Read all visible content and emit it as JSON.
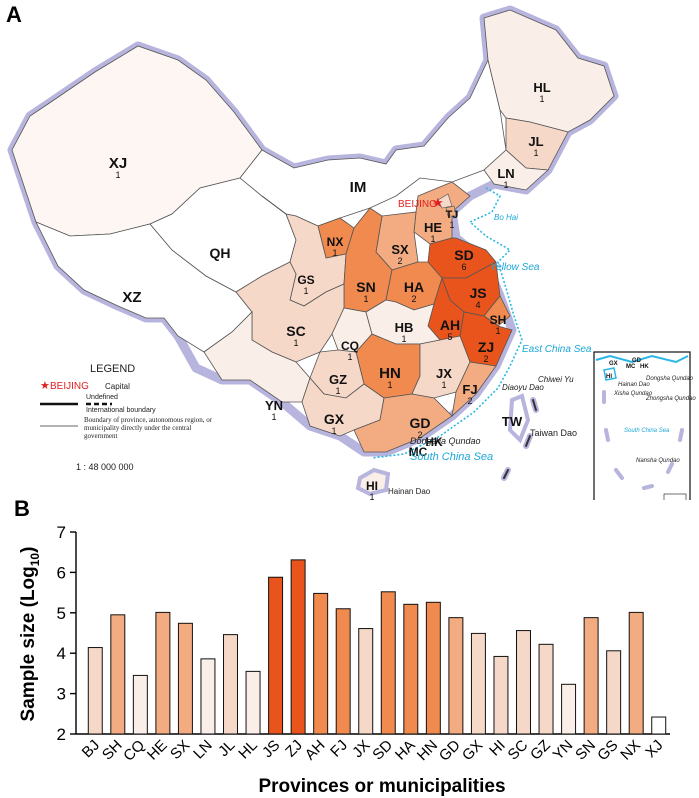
{
  "panel_a": {
    "label": "A",
    "capital_label": "BEIJING",
    "regions": [
      {
        "code": "XJ",
        "sup": "1"
      },
      {
        "code": "XZ",
        "sup": ""
      },
      {
        "code": "QH",
        "sup": ""
      },
      {
        "code": "IM",
        "sup": ""
      },
      {
        "code": "HL",
        "sup": "1"
      },
      {
        "code": "JL",
        "sup": "1"
      },
      {
        "code": "LN",
        "sup": "1"
      },
      {
        "code": "TJ",
        "sup": "1"
      },
      {
        "code": "HE",
        "sup": "1"
      },
      {
        "code": "SX",
        "sup": "2"
      },
      {
        "code": "SD",
        "sup": "6"
      },
      {
        "code": "NX",
        "sup": "1"
      },
      {
        "code": "GS",
        "sup": "1"
      },
      {
        "code": "SN",
        "sup": "1"
      },
      {
        "code": "HA",
        "sup": "2"
      },
      {
        "code": "JS",
        "sup": "4"
      },
      {
        "code": "AH",
        "sup": "5"
      },
      {
        "code": "SH",
        "sup": "1"
      },
      {
        "code": "SC",
        "sup": "1"
      },
      {
        "code": "CQ",
        "sup": "1"
      },
      {
        "code": "HB",
        "sup": "1"
      },
      {
        "code": "ZJ",
        "sup": "2"
      },
      {
        "code": "HN",
        "sup": "1"
      },
      {
        "code": "JX",
        "sup": "1"
      },
      {
        "code": "FJ",
        "sup": "2"
      },
      {
        "code": "GZ",
        "sup": "1"
      },
      {
        "code": "YN",
        "sup": "1"
      },
      {
        "code": "GX",
        "sup": "1"
      },
      {
        "code": "GD",
        "sup": "2"
      },
      {
        "code": "HK",
        "sup": ""
      },
      {
        "code": "MC",
        "sup": ""
      },
      {
        "code": "TW",
        "sup": ""
      },
      {
        "code": "HI",
        "sup": "1"
      }
    ],
    "sea_labels": [
      "Bo Hai",
      "Yellow Sea",
      "East China Sea",
      "South China Sea"
    ],
    "island_labels": [
      "Taiwan Dao",
      "Diaoyu Dao",
      "Chiwei Yu",
      "Dongsha Qundao",
      "Hainan Dao"
    ],
    "legend": {
      "title": "LEGEND",
      "capital": "Capital",
      "undefined": "Undefined",
      "international": "International boundary",
      "province": "Boundary of province, autonomous region, or municipality directly under the central government",
      "scale": "1 : 48 000 000"
    },
    "inset": {
      "codes": [
        "GX",
        "GD",
        "MC",
        "HK",
        "HI"
      ],
      "labels": [
        "Hainan Dao",
        "Xisha Qundao",
        "Dongsha Qundao",
        "Zhongsha Qundao",
        "Nansha Qundao",
        "South China Sea"
      ]
    }
  },
  "panel_b": {
    "label": "B"
  },
  "chart_data": {
    "type": "bar",
    "title": "",
    "xlabel": "Provinces or municipalities",
    "ylabel_main": "Sample size (Log",
    "ylabel_sub": "10",
    "ylabel_end": ")",
    "ylim": [
      2,
      7
    ],
    "yticks": [
      2,
      3,
      4,
      5,
      6,
      7
    ],
    "categories": [
      "BJ",
      "SH",
      "CQ",
      "HE",
      "SX",
      "LN",
      "JL",
      "HL",
      "JS",
      "ZJ",
      "AH",
      "FJ",
      "JX",
      "SD",
      "HA",
      "HN",
      "GD",
      "GX",
      "HI",
      "SC",
      "GZ",
      "YN",
      "SN",
      "GS",
      "NX",
      "XJ"
    ],
    "values": [
      4.14,
      4.95,
      3.45,
      5.01,
      4.74,
      3.86,
      4.46,
      3.55,
      5.88,
      6.31,
      5.48,
      5.1,
      4.61,
      5.52,
      5.21,
      5.26,
      4.88,
      4.49,
      3.92,
      4.56,
      4.22,
      3.23,
      4.88,
      4.06,
      5.01,
      2.42
    ],
    "colors": {
      "lowest": "#ffffff",
      "low": "#faeee8",
      "light": "#f6d8c8",
      "mid": "#f3ab82",
      "high": "#f08a4e",
      "top": "#e8541c"
    }
  }
}
